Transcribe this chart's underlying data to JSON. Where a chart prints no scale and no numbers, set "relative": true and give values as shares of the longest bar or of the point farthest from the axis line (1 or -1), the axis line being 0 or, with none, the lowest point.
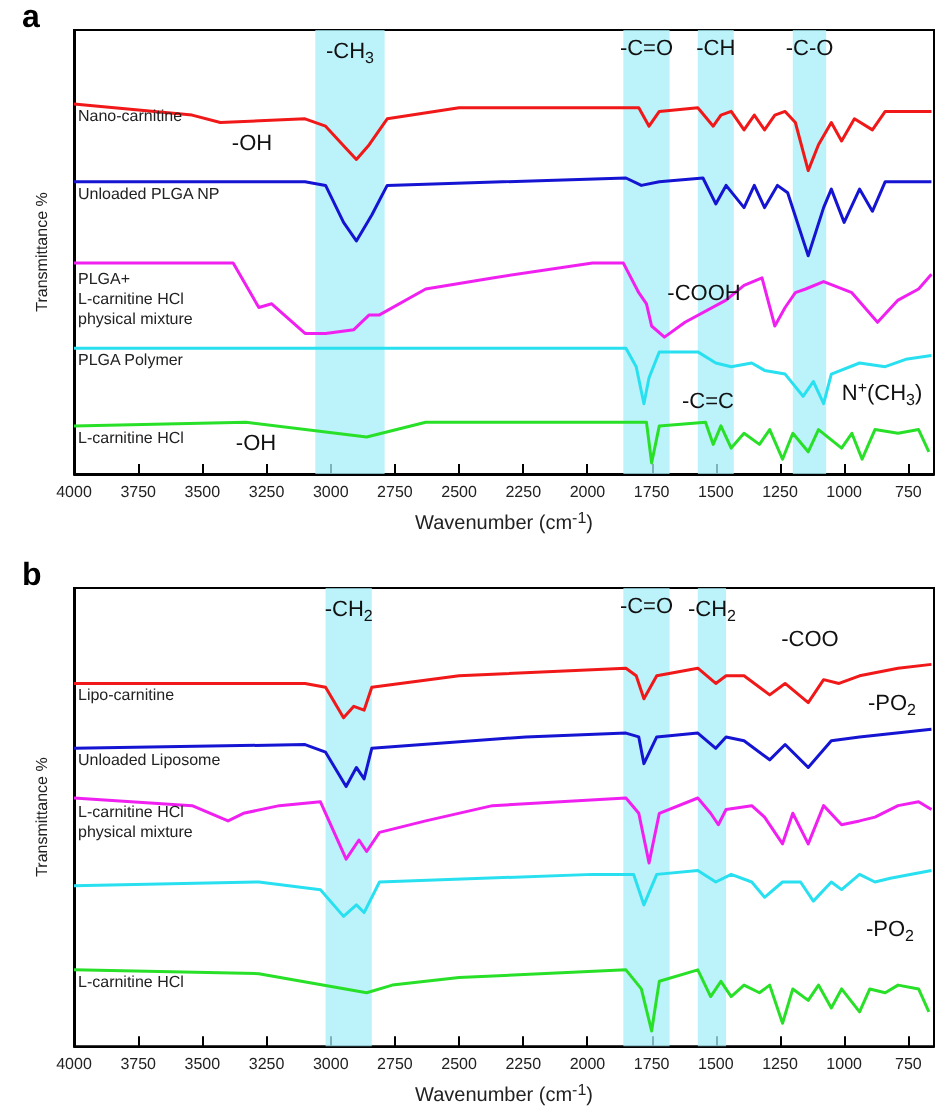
{
  "chart_data": [
    {
      "type": "line",
      "title": "a",
      "xlabel": "Wavenumber (cm$^{-1}$)",
      "ylabel": "Transmittance %",
      "relative": true,
      "xlim": [
        4000,
        650
      ],
      "xticks": [
        4000,
        3750,
        3500,
        3250,
        3000,
        2750,
        2500,
        2250,
        2000,
        1750,
        1500,
        1250,
        1000,
        750
      ],
      "bands": [
        {
          "axis": "x",
          "from": 3060,
          "to": 2790,
          "color": "#a6eef7",
          "label": "-CH$_{3}$"
        },
        {
          "axis": "x",
          "from": 1860,
          "to": 1680,
          "color": "#a6eef7",
          "label": "-C=O"
        },
        {
          "axis": "x",
          "from": 1570,
          "to": 1430,
          "color": "#a6eef7",
          "label": "-CH"
        },
        {
          "axis": "x",
          "from": 1200,
          "to": 1070,
          "color": "#a6eef7",
          "label": "-C-O"
        }
      ],
      "annotations": [
        "-OH",
        "-COOH",
        "-C=C",
        "N$^{+}$(CH$_{3}$)",
        "-OH"
      ],
      "series": [
        {
          "name": "Nano-carnitine",
          "color": "#f01818",
          "x": [
            4000,
            3540,
            3430,
            3100,
            3020,
            2940,
            2900,
            2850,
            2780,
            2500,
            1850,
            1800,
            1760,
            1720,
            1570,
            1510,
            1480,
            1440,
            1390,
            1350,
            1310,
            1270,
            1230,
            1190,
            1140,
            1100,
            1050,
            1010,
            960,
            890,
            840,
            660
          ],
          "values": [
            1.0,
            0.97,
            0.95,
            0.96,
            0.94,
            0.88,
            0.85,
            0.89,
            0.96,
            0.99,
            0.99,
            0.99,
            0.94,
            0.98,
            0.99,
            0.94,
            0.97,
            0.98,
            0.93,
            0.97,
            0.93,
            0.97,
            0.98,
            0.95,
            0.82,
            0.89,
            0.95,
            0.9,
            0.96,
            0.93,
            0.98,
            0.98
          ]
        },
        {
          "name": "Unloaded PLGA NP",
          "color": "#1414d2",
          "x": [
            4000,
            3100,
            3020,
            2950,
            2900,
            2840,
            2780,
            1850,
            1790,
            1720,
            1550,
            1500,
            1460,
            1390,
            1350,
            1310,
            1260,
            1220,
            1140,
            1080,
            1050,
            1000,
            940,
            890,
            840,
            660
          ],
          "values": [
            0.79,
            0.79,
            0.78,
            0.68,
            0.63,
            0.7,
            0.78,
            0.8,
            0.78,
            0.79,
            0.8,
            0.73,
            0.78,
            0.72,
            0.78,
            0.72,
            0.78,
            0.76,
            0.59,
            0.72,
            0.77,
            0.68,
            0.77,
            0.71,
            0.79,
            0.79
          ]
        },
        {
          "name": "PLGA+\nL-carnitine HCl\nphysical mixture",
          "color": "#f020f0",
          "x": [
            4000,
            3380,
            3280,
            3230,
            3100,
            3020,
            2910,
            2850,
            2810,
            2630,
            2370,
            1980,
            1860,
            1800,
            1770,
            1750,
            1700,
            1620,
            1460,
            1390,
            1320,
            1270,
            1230,
            1190,
            1150,
            1080,
            970,
            870,
            790,
            710,
            660
          ],
          "values": [
            0.57,
            0.57,
            0.45,
            0.46,
            0.38,
            0.38,
            0.39,
            0.43,
            0.43,
            0.5,
            0.53,
            0.57,
            0.57,
            0.49,
            0.46,
            0.4,
            0.37,
            0.41,
            0.47,
            0.51,
            0.53,
            0.4,
            0.45,
            0.49,
            0.5,
            0.52,
            0.49,
            0.41,
            0.47,
            0.5,
            0.54
          ]
        },
        {
          "name": "PLGA Polymer",
          "color": "#28e0f0",
          "x": [
            4000,
            1850,
            1810,
            1780,
            1760,
            1720,
            1570,
            1500,
            1440,
            1360,
            1310,
            1230,
            1160,
            1120,
            1080,
            1050,
            940,
            840,
            760,
            660
          ],
          "values": [
            0.34,
            0.34,
            0.29,
            0.19,
            0.26,
            0.33,
            0.33,
            0.3,
            0.29,
            0.3,
            0.28,
            0.27,
            0.21,
            0.25,
            0.19,
            0.27,
            0.3,
            0.29,
            0.31,
            0.32
          ]
        },
        {
          "name": "L-carnitine HCl",
          "color": "#28e028",
          "x": [
            4000,
            3330,
            2860,
            2630,
            1770,
            1750,
            1720,
            1540,
            1510,
            1480,
            1440,
            1390,
            1330,
            1290,
            1240,
            1200,
            1140,
            1100,
            1010,
            970,
            930,
            880,
            790,
            710,
            670
          ],
          "values": [
            0.13,
            0.14,
            0.1,
            0.14,
            0.14,
            0.03,
            0.13,
            0.14,
            0.08,
            0.13,
            0.07,
            0.11,
            0.08,
            0.12,
            0.04,
            0.11,
            0.06,
            0.12,
            0.07,
            0.11,
            0.04,
            0.12,
            0.11,
            0.12,
            0.06
          ]
        }
      ]
    },
    {
      "type": "line",
      "title": "b",
      "xlabel": "Wavenumber (cm$^{-1}$)",
      "ylabel": "Transmittance %",
      "relative": true,
      "xlim": [
        4000,
        650
      ],
      "xticks": [
        4000,
        3750,
        3500,
        3250,
        3000,
        2750,
        2500,
        2250,
        2000,
        1750,
        1500,
        1250,
        1000,
        750
      ],
      "bands": [
        {
          "axis": "x",
          "from": 3020,
          "to": 2840,
          "color": "#a6eef7",
          "label": "-CH$_{2}$"
        },
        {
          "axis": "x",
          "from": 1860,
          "to": 1680,
          "color": "#a6eef7",
          "label": "-C=O"
        },
        {
          "axis": "x",
          "from": 1570,
          "to": 1460,
          "color": "#a6eef7",
          "label": "-CH$_{2}$"
        }
      ],
      "annotations": [
        "-COO",
        "-PO$_{2}$",
        "-PO$_{2}$"
      ],
      "series": [
        {
          "name": "Lipo-carnitine",
          "color": "#f01818",
          "x": [
            4000,
            3100,
            3020,
            2950,
            2910,
            2870,
            2840,
            2500,
            1850,
            1810,
            1780,
            1730,
            1570,
            1500,
            1460,
            1390,
            1290,
            1230,
            1140,
            1080,
            1020,
            940,
            790,
            660
          ],
          "values": [
            0.95,
            0.95,
            0.94,
            0.86,
            0.89,
            0.88,
            0.94,
            0.97,
            0.99,
            0.97,
            0.91,
            0.97,
            0.99,
            0.95,
            0.97,
            0.97,
            0.92,
            0.95,
            0.9,
            0.96,
            0.95,
            0.97,
            0.99,
            1.0
          ]
        },
        {
          "name": "Unloaded Liposome",
          "color": "#1414d2",
          "x": [
            4000,
            3100,
            3020,
            2940,
            2900,
            2870,
            2840,
            2240,
            1850,
            1800,
            1780,
            1730,
            1570,
            1500,
            1460,
            1390,
            1290,
            1230,
            1140,
            1050,
            940,
            660
          ],
          "values": [
            0.78,
            0.79,
            0.77,
            0.68,
            0.73,
            0.7,
            0.78,
            0.81,
            0.82,
            0.81,
            0.74,
            0.81,
            0.82,
            0.78,
            0.81,
            0.8,
            0.75,
            0.79,
            0.73,
            0.8,
            0.81,
            0.83
          ]
        },
        {
          "name": "L-carnitine HCl\nphysical mixture",
          "color": "#f020f0",
          "x": [
            4000,
            3540,
            3400,
            3340,
            3200,
            3040,
            2960,
            2940,
            2890,
            2860,
            2810,
            2630,
            2370,
            1850,
            1800,
            1760,
            1720,
            1570,
            1520,
            1490,
            1460,
            1360,
            1310,
            1240,
            1200,
            1140,
            1080,
            1010,
            940,
            880,
            790,
            710,
            660
          ],
          "values": [
            0.65,
            0.63,
            0.59,
            0.61,
            0.63,
            0.64,
            0.52,
            0.49,
            0.54,
            0.51,
            0.56,
            0.59,
            0.63,
            0.65,
            0.61,
            0.48,
            0.61,
            0.65,
            0.61,
            0.58,
            0.62,
            0.63,
            0.6,
            0.53,
            0.61,
            0.53,
            0.63,
            0.58,
            0.59,
            0.6,
            0.63,
            0.64,
            0.62
          ]
        },
        {
          "color": "#28e0f0",
          "x": [
            4000,
            3280,
            3040,
            2950,
            2900,
            2870,
            2810,
            1980,
            1820,
            1780,
            1730,
            1570,
            1500,
            1440,
            1360,
            1310,
            1240,
            1170,
            1120,
            1050,
            1010,
            940,
            880,
            820,
            660
          ],
          "values": [
            0.42,
            0.43,
            0.41,
            0.34,
            0.37,
            0.35,
            0.43,
            0.45,
            0.45,
            0.37,
            0.45,
            0.46,
            0.43,
            0.45,
            0.43,
            0.39,
            0.43,
            0.43,
            0.38,
            0.43,
            0.41,
            0.45,
            0.43,
            0.44,
            0.46
          ]
        },
        {
          "name": "L-carnitine HCl",
          "color": "#28e028",
          "x": [
            4000,
            3280,
            2860,
            2760,
            2500,
            1850,
            1790,
            1750,
            1720,
            1570,
            1520,
            1480,
            1440,
            1390,
            1330,
            1290,
            1240,
            1200,
            1140,
            1100,
            1050,
            1010,
            940,
            900,
            840,
            790,
            710,
            670
          ],
          "values": [
            0.2,
            0.19,
            0.14,
            0.16,
            0.18,
            0.2,
            0.15,
            0.04,
            0.17,
            0.2,
            0.13,
            0.17,
            0.13,
            0.16,
            0.14,
            0.16,
            0.06,
            0.15,
            0.12,
            0.16,
            0.1,
            0.15,
            0.09,
            0.15,
            0.14,
            0.16,
            0.15,
            0.09
          ]
        }
      ]
    }
  ]
}
